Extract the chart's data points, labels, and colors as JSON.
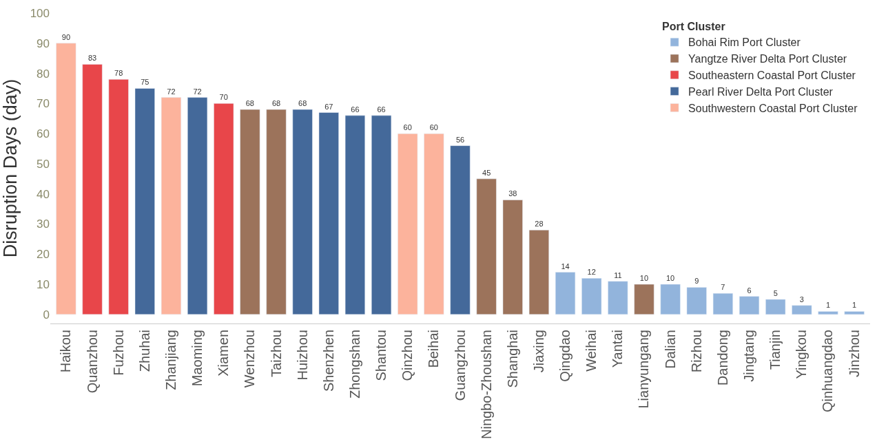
{
  "chart_data": {
    "type": "bar",
    "ylabel": "Disruption Days (day)",
    "legend_title": "Port Cluster",
    "legend": "top right",
    "data_labels": true,
    "categories": [
      "Haikou",
      "Quanzhou",
      "Fuzhou",
      "Zhuhai",
      "Zhanjiang",
      "Maoming",
      "Xiamen",
      "Wenzhou",
      "Taizhou",
      "Huizhou",
      "Shenzhen",
      "Zhongshan",
      "Shantou",
      "Qinzhou",
      "Beihai",
      "Guangzhou",
      "Ningbo-Zhoushan",
      "Shanghai",
      "Jiaxing",
      "Qingdao",
      "Weihai",
      "Yantai",
      "Lianyungang",
      "Dalian",
      "Rizhou",
      "Dandong",
      "Jingtang",
      "Tianjin",
      "Yingkou",
      "Qinhuangdao",
      "Jinzhou"
    ],
    "ylim": [
      -3,
      100
    ],
    "yticks": [
      0,
      10,
      20,
      30,
      40,
      50,
      60,
      70,
      80,
      90,
      100
    ],
    "series": [
      {
        "name": "Bohai Rim Port Cluster",
        "color": "#92b4dc",
        "values": [
          null,
          null,
          null,
          null,
          null,
          null,
          null,
          null,
          null,
          null,
          null,
          null,
          null,
          null,
          null,
          null,
          null,
          null,
          null,
          14,
          12,
          11,
          null,
          10,
          9,
          7,
          6,
          5,
          3,
          1,
          1
        ]
      },
      {
        "name": "Yangtze River Delta Port Cluster",
        "color": "#9c735b",
        "values": [
          null,
          null,
          null,
          null,
          null,
          null,
          null,
          68,
          68,
          null,
          null,
          null,
          null,
          null,
          null,
          null,
          45,
          38,
          28,
          null,
          null,
          null,
          10,
          null,
          null,
          null,
          null,
          null,
          null,
          null,
          null
        ]
      },
      {
        "name": "Southeastern Coastal Port Cluster",
        "color": "#e8464a",
        "values": [
          null,
          83,
          78,
          null,
          null,
          null,
          70,
          null,
          null,
          null,
          null,
          null,
          null,
          null,
          null,
          null,
          null,
          null,
          null,
          null,
          null,
          null,
          null,
          null,
          null,
          null,
          null,
          null,
          null,
          null,
          null
        ]
      },
      {
        "name": "Pearl River Delta Port Cluster",
        "color": "#44699a",
        "values": [
          null,
          null,
          null,
          75,
          null,
          72,
          null,
          null,
          null,
          68,
          67,
          66,
          66,
          null,
          null,
          56,
          null,
          null,
          null,
          null,
          null,
          null,
          null,
          null,
          null,
          null,
          null,
          null,
          null,
          null,
          null
        ]
      },
      {
        "name": "Southwestern Coastal Port Cluster",
        "color": "#fcb39c",
        "values": [
          90,
          null,
          null,
          null,
          72,
          null,
          null,
          null,
          null,
          null,
          null,
          null,
          null,
          60,
          60,
          null,
          null,
          null,
          null,
          null,
          null,
          null,
          null,
          null,
          null,
          null,
          null,
          null,
          null,
          null,
          null
        ]
      }
    ]
  }
}
